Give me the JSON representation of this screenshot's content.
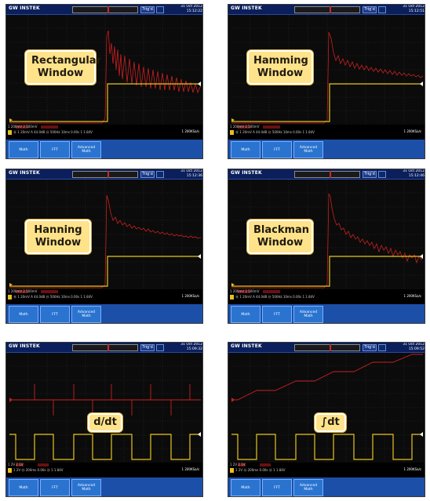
{
  "colors": {
    "trace_red": "#c82020",
    "trace_yellow": "#e8c41e",
    "label_bg": "#ffe38a",
    "softkey_bg": "#2a74d0"
  },
  "panels": [
    {
      "brand": "GW INSTEK",
      "trigger_button": "Trig'd",
      "datetime": "31 Oct 2012\n15:12:22",
      "label": "Rectangular\nWindow",
      "status_lines": [
        "1 200mV  2  500mV",
        "Ⓜ 1 20mV  A 44.0dB  Ⓜ 500Hz  10ms  0.00s  1 1.84V"
      ],
      "sample_rate": "1 200KSa/s",
      "softkeys": [
        "Math",
        "FFT",
        "Advanced\nMath"
      ]
    },
    {
      "brand": "GW INSTEK",
      "trigger_button": "Trig'd",
      "datetime": "31 Oct 2012\n15:12:51",
      "label": "Hamming\nWindow",
      "status_lines": [
        "1 200mV  2  500mV",
        "Ⓜ 1 20mV  A 44.0dB  Ⓜ 500Hz  10ms  0.00s  1 1.84V"
      ],
      "sample_rate": "1 200KSa/s",
      "softkeys": [
        "Math",
        "FFT",
        "Advanced\nMath"
      ]
    },
    {
      "brand": "GW INSTEK",
      "trigger_button": "Trig'd",
      "datetime": "31 Oct 2012\n15:12:36",
      "label": "Hanning\nWindow",
      "status_lines": [
        "1 200mV  2  500mV",
        "Ⓜ 1 20mV  A 44.0dB  Ⓜ 500Hz  10ms  0.00s  1 1.84V"
      ],
      "sample_rate": "1 200KSa/s",
      "softkeys": [
        "Math",
        "FFT",
        "Advanced\nMath"
      ]
    },
    {
      "brand": "GW INSTEK",
      "trigger_button": "Trig'd",
      "datetime": "31 Oct 2012\n15:12:46",
      "label": "Blackman\nWindow",
      "status_lines": [
        "1 200mV  2  500mV",
        "Ⓜ 1 20mV  A 44.0dB  Ⓜ 500Hz  10ms  0.00s  1 1.84V"
      ],
      "sample_rate": "1 200KSa/s",
      "softkeys": [
        "Math",
        "FFT",
        "Advanced\nMath"
      ]
    },
    {
      "brand": "GW INSTEK",
      "trigger_button": "Trig'd",
      "datetime": "31 Oct 2012\n15:09:32",
      "label": "d/dt",
      "status_lines": [
        "1 2V  2  1V",
        "1  2V  Ⓜ 200ms  0.00s  Ⓜ 1 1.84V"
      ],
      "sample_rate": "1 200KSa/s",
      "softkeys": [
        "Math",
        "FFT",
        "Advanced\nMath"
      ]
    },
    {
      "brand": "GW INSTEK",
      "trigger_button": "Trig'd",
      "datetime": "31 Oct 2012\n15:09:52",
      "label": "∫dt",
      "status_lines": [
        "1 2V  2  1V",
        "1  2V  Ⓜ 200ms  0.00s  Ⓜ 1 1.84V"
      ],
      "sample_rate": "1 200KSa/s",
      "softkeys": [
        "Math",
        "FFT",
        "Advanced\nMath"
      ]
    }
  ]
}
